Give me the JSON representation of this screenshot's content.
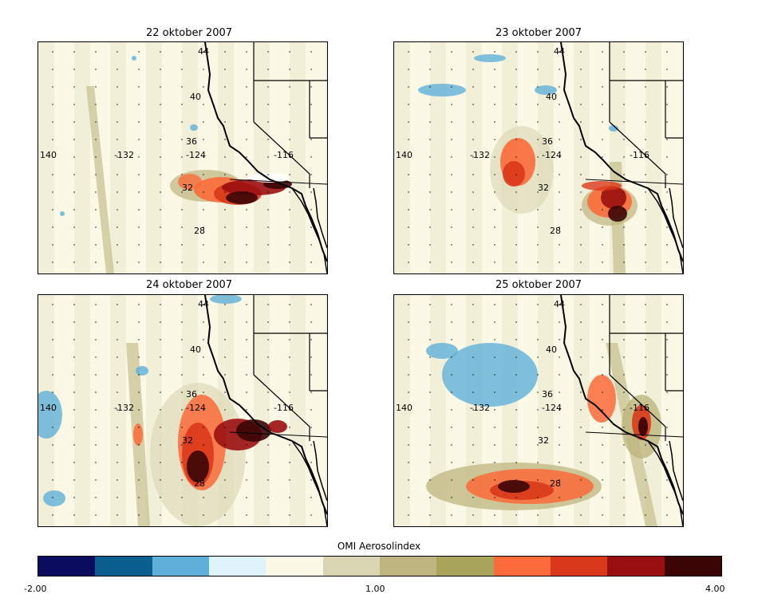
{
  "panels": [
    {
      "title": "22 oktober 2007"
    },
    {
      "title": "23 oktober 2007"
    },
    {
      "title": "24 oktober 2007"
    },
    {
      "title": "25 oktober 2007"
    }
  ],
  "grid_labels": {
    "lat": [
      "44",
      "40",
      "36",
      "32",
      "28"
    ],
    "lon": [
      "140",
      "-132",
      "-124",
      "-116"
    ]
  },
  "colorbar": {
    "title": "OMI Aerosolindex",
    "min_label": "-2.00",
    "mid_label": "1.00",
    "max_label": "4.00",
    "colors": [
      "#0b0b60",
      "#0a5f90",
      "#5fb0d8",
      "#dff3fb",
      "#fbf8e6",
      "#d9d5b2",
      "#bdb57d",
      "#a8a45a",
      "#fb6a3a",
      "#d9381a",
      "#9a0f0f",
      "#3b0505"
    ]
  }
}
